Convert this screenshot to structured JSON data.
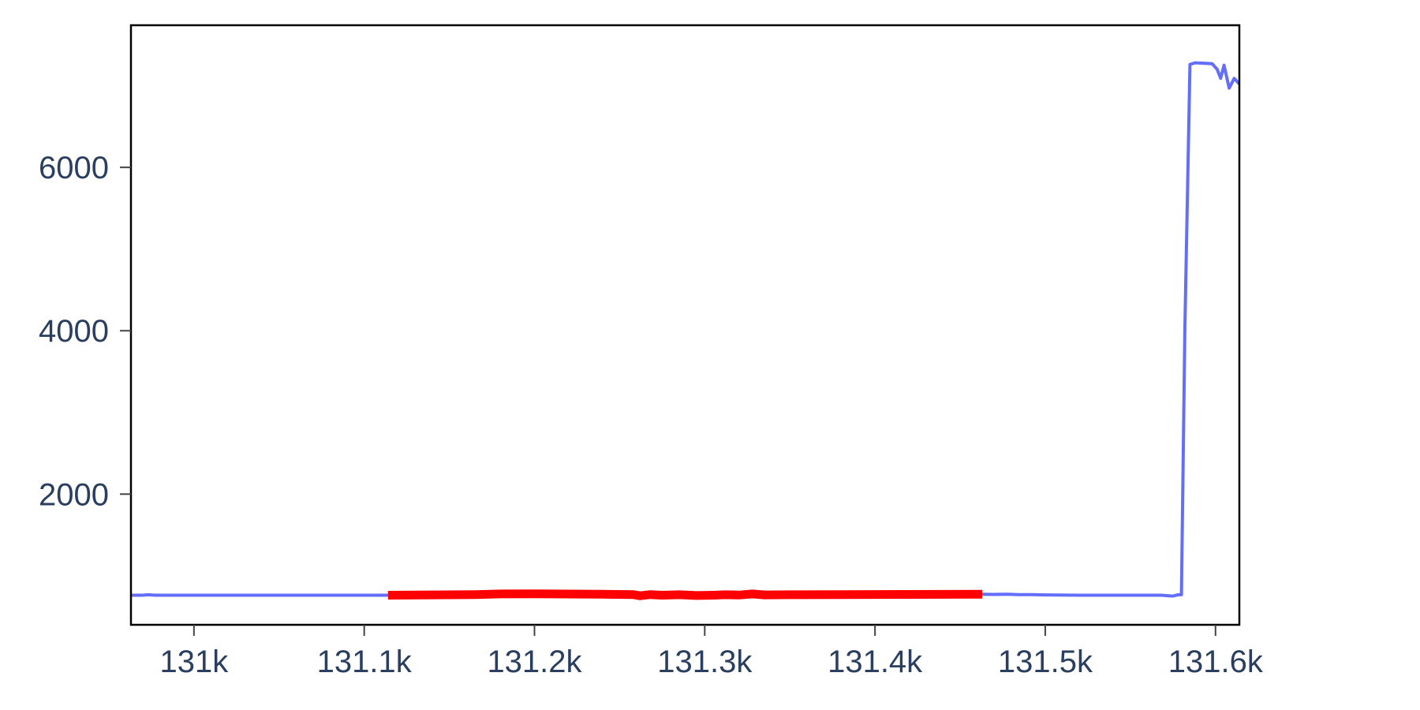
{
  "chart_data": {
    "type": "line",
    "title": "",
    "xlabel": "",
    "ylabel": "",
    "xlim": [
      130963,
      131614
    ],
    "ylim": [
      400,
      7740
    ],
    "x_ticks": [
      {
        "value": 131000,
        "label": "131k"
      },
      {
        "value": 131100,
        "label": "131.1k"
      },
      {
        "value": 131200,
        "label": "131.2k"
      },
      {
        "value": 131300,
        "label": "131.3k"
      },
      {
        "value": 131400,
        "label": "131.4k"
      },
      {
        "value": 131500,
        "label": "131.5k"
      },
      {
        "value": 131600,
        "label": "131.6k"
      }
    ],
    "y_ticks": [
      {
        "value": 2000,
        "label": "2000"
      },
      {
        "value": 4000,
        "label": "4000"
      },
      {
        "value": 6000,
        "label": "6000"
      }
    ],
    "grid": false,
    "legend": "none",
    "series": [
      {
        "color": "#636efa",
        "points": [
          [
            130963,
            762
          ],
          [
            130970,
            762
          ],
          [
            130973,
            768
          ],
          [
            130977,
            762
          ],
          [
            131000,
            762
          ],
          [
            131050,
            762
          ],
          [
            131100,
            762
          ],
          [
            131114,
            762
          ],
          [
            131150,
            768
          ],
          [
            131180,
            775
          ],
          [
            131200,
            780
          ],
          [
            131240,
            775
          ],
          [
            131258,
            768
          ],
          [
            131262,
            760
          ],
          [
            131268,
            768
          ],
          [
            131275,
            764
          ],
          [
            131290,
            766
          ],
          [
            131300,
            762
          ],
          [
            131320,
            770
          ],
          [
            131330,
            768
          ],
          [
            131350,
            768
          ],
          [
            131400,
            775
          ],
          [
            131460,
            775
          ],
          [
            131470,
            772
          ],
          [
            131478,
            775
          ],
          [
            131484,
            770
          ],
          [
            131492,
            770
          ],
          [
            131500,
            766
          ],
          [
            131520,
            762
          ],
          [
            131550,
            762
          ],
          [
            131568,
            762
          ],
          [
            131575,
            752
          ],
          [
            131578,
            768
          ],
          [
            131580,
            768
          ],
          [
            131582,
            4000
          ],
          [
            131585,
            7260
          ],
          [
            131588,
            7280
          ],
          [
            131598,
            7270
          ],
          [
            131601,
            7200
          ],
          [
            131603,
            7090
          ],
          [
            131605,
            7250
          ],
          [
            131608,
            6970
          ],
          [
            131611,
            7090
          ],
          [
            131614,
            7020
          ]
        ]
      },
      {
        "color": "#ff0000",
        "points": [
          [
            131114,
            762
          ],
          [
            131140,
            766
          ],
          [
            131165,
            770
          ],
          [
            131180,
            778
          ],
          [
            131200,
            780
          ],
          [
            131230,
            776
          ],
          [
            131258,
            770
          ],
          [
            131262,
            755
          ],
          [
            131268,
            770
          ],
          [
            131275,
            762
          ],
          [
            131285,
            768
          ],
          [
            131295,
            758
          ],
          [
            131305,
            762
          ],
          [
            131312,
            768
          ],
          [
            131320,
            764
          ],
          [
            131328,
            778
          ],
          [
            131335,
            766
          ],
          [
            131350,
            768
          ],
          [
            131380,
            770
          ],
          [
            131420,
            772
          ],
          [
            131463,
            775
          ]
        ]
      }
    ]
  }
}
